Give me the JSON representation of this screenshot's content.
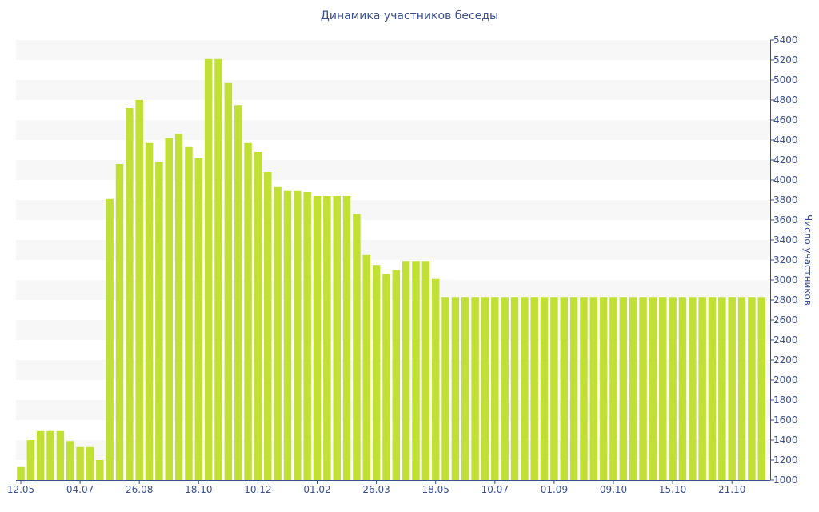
{
  "chart_data": {
    "type": "bar",
    "title": "Динамика участников беседы",
    "xlabel": "",
    "ylabel": "Число участников",
    "y_axis_side": "right",
    "ylim": [
      1000,
      5400
    ],
    "y_ticks": [
      1000,
      1200,
      1400,
      1600,
      1800,
      2000,
      2200,
      2400,
      2600,
      2800,
      3000,
      3200,
      3400,
      3600,
      3800,
      4000,
      4200,
      4400,
      4600,
      4800,
      5000,
      5200,
      5400
    ],
    "x_tick_labels": [
      {
        "index": 0,
        "label": "12.05"
      },
      {
        "index": 6,
        "label": "04.07"
      },
      {
        "index": 12,
        "label": "26.08"
      },
      {
        "index": 18,
        "label": "18.10"
      },
      {
        "index": 24,
        "label": "10.12"
      },
      {
        "index": 30,
        "label": "01.02"
      },
      {
        "index": 36,
        "label": "26.03"
      },
      {
        "index": 42,
        "label": "18.05"
      },
      {
        "index": 48,
        "label": "10.07"
      },
      {
        "index": 54,
        "label": "01.09"
      },
      {
        "index": 60,
        "label": "09.10"
      },
      {
        "index": 66,
        "label": "15.10"
      },
      {
        "index": 72,
        "label": "21.10"
      }
    ],
    "grid": "horizontal-bands",
    "legend": "none",
    "bar_color": "#c0e036",
    "band_color": "#f7f7f7",
    "text_color": "#3a4f8f",
    "values": [
      1130,
      1400,
      1490,
      1490,
      1490,
      1390,
      1330,
      1330,
      1200,
      3810,
      4160,
      4720,
      4800,
      4370,
      4180,
      4420,
      4460,
      4330,
      4220,
      5210,
      5210,
      4970,
      4750,
      4370,
      4280,
      4080,
      3930,
      3890,
      3890,
      3880,
      3840,
      3840,
      3840,
      3840,
      3660,
      3250,
      3150,
      3060,
      3100,
      3190,
      3190,
      3190,
      3010,
      2830,
      2830,
      2830,
      2830,
      2830,
      2830,
      2830,
      2830,
      2830,
      2830,
      2830,
      2830,
      2830,
      2830,
      2830,
      2830,
      2830,
      2830,
      2830,
      2830,
      2830,
      2830,
      2830,
      2830,
      2830,
      2830,
      2830,
      2830,
      2830,
      2830,
      2830,
      2830,
      2830
    ]
  }
}
